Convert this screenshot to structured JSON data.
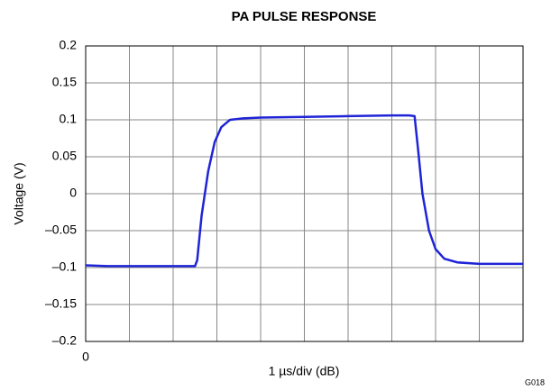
{
  "chart_data": {
    "type": "line",
    "title": "PA PULSE RESPONSE",
    "y_label": "Voltage (V)",
    "x_label": "1 µs/div (dB)",
    "annotation": "G018",
    "xlim": [
      0,
      10
    ],
    "xticks": [
      0
    ],
    "xgrid": [
      0,
      1,
      2,
      3,
      4,
      5,
      6,
      7,
      8,
      9,
      10
    ],
    "ylim": [
      -0.2,
      0.2
    ],
    "yticks": [
      {
        "value": -0.2,
        "label": "–0.2"
      },
      {
        "value": -0.15,
        "label": "–0.15"
      },
      {
        "value": -0.1,
        "label": "–0.1"
      },
      {
        "value": -0.05,
        "label": "–0.05"
      },
      0,
      0.05,
      0.1,
      0.15,
      0.2
    ],
    "grid": true,
    "series": [
      {
        "color": "#1f24d6",
        "x": [
          0,
          0.5,
          1,
          1.5,
          2,
          2.5,
          2.55,
          2.65,
          2.8,
          2.95,
          3.1,
          3.3,
          3.6,
          4,
          5,
          6,
          7,
          7.4,
          7.52,
          7.6,
          7.7,
          7.85,
          8,
          8.2,
          8.5,
          9,
          9.5,
          10
        ],
        "values": [
          -0.097,
          -0.098,
          -0.098,
          -0.098,
          -0.098,
          -0.098,
          -0.09,
          -0.03,
          0.03,
          0.07,
          0.09,
          0.1,
          0.102,
          0.103,
          0.104,
          0.105,
          0.106,
          0.106,
          0.105,
          0.06,
          0.0,
          -0.05,
          -0.075,
          -0.088,
          -0.093,
          -0.095,
          -0.095,
          -0.095
        ]
      }
    ]
  }
}
